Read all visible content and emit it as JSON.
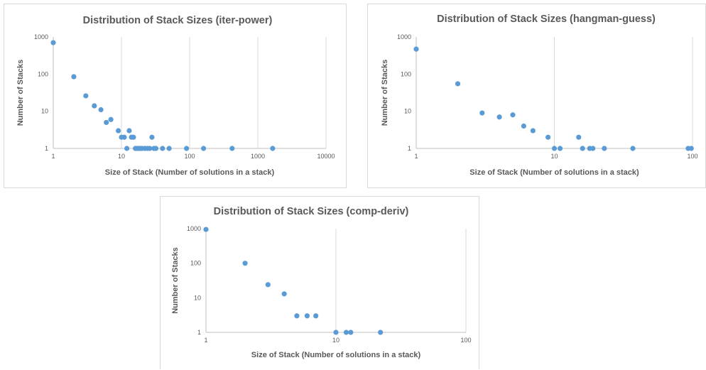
{
  "marker_color": "#5b9bd5",
  "gridline_color": "#d9d9d9",
  "text_color": "#595959",
  "chart_data": [
    {
      "type": "scatter",
      "title": "Distribution of Stack Sizes (iter-power)",
      "xlabel": "Size of Stack (Number of solutions in a stack)",
      "ylabel": "Number of Stacks",
      "xscale": "log",
      "yscale": "log",
      "xlim": [
        1,
        10000
      ],
      "ylim": [
        1,
        1000
      ],
      "xticks": [
        "1",
        "10",
        "100",
        "1000",
        "10000"
      ],
      "yticks": [
        "1",
        "10",
        "100",
        "1000"
      ],
      "grid": "vertical",
      "x": [
        1,
        2,
        3,
        4,
        5,
        6,
        7,
        9,
        10,
        11,
        12,
        13,
        14,
        15,
        16,
        17,
        18,
        19,
        20,
        22,
        24,
        26,
        28,
        30,
        32,
        40,
        50,
        90,
        160,
        420,
        1650
      ],
      "y": [
        700,
        85,
        26,
        14,
        11,
        5,
        6,
        3,
        2,
        2,
        1,
        3,
        2,
        2,
        1,
        1,
        1,
        1,
        1,
        1,
        1,
        1,
        2,
        1,
        1,
        1,
        1,
        1,
        1,
        1,
        1
      ]
    },
    {
      "type": "scatter",
      "title": "Distribution of Stack Sizes (hangman-guess)",
      "xlabel": "Size of Stack (Number of solutions in a stack)",
      "ylabel": "Number of Stacks",
      "xscale": "log",
      "yscale": "log",
      "xlim": [
        1,
        100
      ],
      "ylim": [
        1,
        1000
      ],
      "xticks": [
        "1",
        "10",
        "100"
      ],
      "yticks": [
        "1",
        "10",
        "100",
        "1000"
      ],
      "grid": "vertical",
      "x": [
        1,
        2,
        3,
        4,
        5,
        6,
        7,
        9,
        10,
        11,
        15,
        16,
        18,
        19,
        23,
        37,
        93,
        98
      ],
      "y": [
        470,
        55,
        9,
        7,
        8,
        4,
        3,
        2,
        1,
        1,
        2,
        1,
        1,
        1,
        1,
        1,
        1,
        1
      ]
    },
    {
      "type": "scatter",
      "title": "Distribution of Stack Sizes (comp-deriv)",
      "xlabel": "Size of Stack (Number of solutions in a stack)",
      "ylabel": "Number of Stacks",
      "xscale": "log",
      "yscale": "log",
      "xlim": [
        1,
        100
      ],
      "ylim": [
        1,
        1000
      ],
      "xticks": [
        "1",
        "10",
        "100"
      ],
      "yticks": [
        "1",
        "10",
        "100",
        "1000"
      ],
      "grid": "vertical",
      "x": [
        1,
        2,
        3,
        4,
        5,
        6,
        7,
        10,
        12,
        13,
        22
      ],
      "y": [
        950,
        100,
        24,
        13,
        3,
        3,
        3,
        1,
        1,
        1,
        1
      ]
    }
  ]
}
